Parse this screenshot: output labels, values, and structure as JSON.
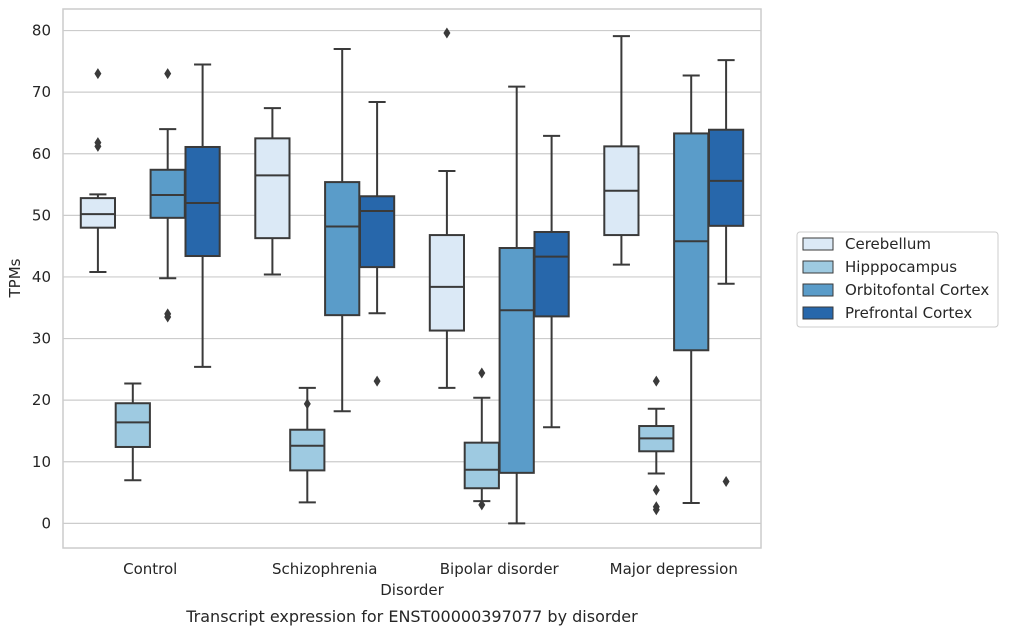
{
  "chart_data": {
    "type": "box",
    "title": "",
    "caption": "Transcript expression for ENST00000397077 by disorder",
    "xlabel": "Disorder",
    "ylabel": "TPMs",
    "ylim": [
      -4,
      83.5
    ],
    "yticks": [
      0,
      10,
      20,
      30,
      40,
      50,
      60,
      70,
      80
    ],
    "grid": "horizontal",
    "legend_position": "right",
    "categories": [
      "Control",
      "Schizophrenia",
      "Bipolar disorder",
      "Major depression"
    ],
    "series": [
      {
        "name": "Cerebellum",
        "color": "#dbe9f6",
        "boxes": [
          {
            "whisker_low": 40.8,
            "q1": 48.0,
            "median": 50.2,
            "q3": 52.8,
            "whisker_high": 53.4,
            "outliers": [
              61.2,
              61.8,
              73.0
            ]
          },
          {
            "whisker_low": 40.4,
            "q1": 46.3,
            "median": 56.5,
            "q3": 62.5,
            "whisker_high": 67.4,
            "outliers": []
          },
          {
            "whisker_low": 22.0,
            "q1": 31.3,
            "median": 38.4,
            "q3": 46.8,
            "whisker_high": 57.2,
            "outliers": [
              79.6
            ]
          },
          {
            "whisker_low": 42.0,
            "q1": 46.8,
            "median": 54.0,
            "q3": 61.2,
            "whisker_high": 79.1,
            "outliers": []
          }
        ]
      },
      {
        "name": "Hipppocampus",
        "color": "#9ecae1",
        "boxes": [
          {
            "whisker_low": 7.0,
            "q1": 12.4,
            "median": 16.4,
            "q3": 19.5,
            "whisker_high": 22.7,
            "outliers": []
          },
          {
            "whisker_low": 3.4,
            "q1": 8.6,
            "median": 12.6,
            "q3": 15.2,
            "whisker_high": 22.0,
            "outliers": [
              19.4
            ]
          },
          {
            "whisker_low": 3.6,
            "q1": 5.7,
            "median": 8.7,
            "q3": 13.1,
            "whisker_high": 20.4,
            "outliers": [
              3.0,
              24.4
            ]
          },
          {
            "whisker_low": 8.1,
            "q1": 11.7,
            "median": 13.8,
            "q3": 15.8,
            "whisker_high": 18.6,
            "outliers": [
              2.2,
              2.7,
              5.4,
              23.1
            ]
          }
        ]
      },
      {
        "name": "Orbitofontal Cortex",
        "color": "#5a9cc9",
        "boxes": [
          {
            "whisker_low": 39.8,
            "q1": 49.6,
            "median": 53.3,
            "q3": 57.4,
            "whisker_high": 64.0,
            "outliers": [
              33.5,
              34.0,
              73.0
            ]
          },
          {
            "whisker_low": 18.2,
            "q1": 33.8,
            "median": 48.2,
            "q3": 55.4,
            "whisker_high": 77.0,
            "outliers": []
          },
          {
            "whisker_low": 0.0,
            "q1": 8.2,
            "median": 34.6,
            "q3": 44.7,
            "whisker_high": 70.9,
            "outliers": []
          },
          {
            "whisker_low": 3.3,
            "q1": 28.1,
            "median": 45.8,
            "q3": 63.3,
            "whisker_high": 72.7,
            "outliers": []
          }
        ]
      },
      {
        "name": "Prefrontal Cortex",
        "color": "#2767ab",
        "boxes": [
          {
            "whisker_low": 25.4,
            "q1": 43.4,
            "median": 52.0,
            "q3": 61.1,
            "whisker_high": 74.5,
            "outliers": []
          },
          {
            "whisker_low": 34.1,
            "q1": 41.6,
            "median": 50.7,
            "q3": 53.1,
            "whisker_high": 68.4,
            "outliers": [
              23.1
            ]
          },
          {
            "whisker_low": 15.6,
            "q1": 33.6,
            "median": 43.3,
            "q3": 47.3,
            "whisker_high": 62.9,
            "outliers": []
          },
          {
            "whisker_low": 38.9,
            "q1": 48.3,
            "median": 55.6,
            "q3": 63.9,
            "whisker_high": 75.2,
            "outliers": [
              6.8
            ]
          }
        ]
      }
    ]
  }
}
